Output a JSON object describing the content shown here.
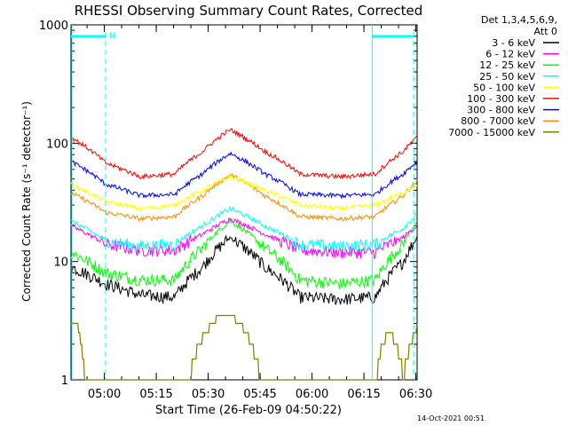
{
  "chart_data": {
    "type": "line",
    "title": "RHESSI Observing Summary Count Rates, Corrected",
    "xlabel": "Start Time (26-Feb-09 04:50:22)",
    "ylabel": "Corrected Count Rate (s⁻¹ detector⁻¹)",
    "yscale": "log",
    "xlim_minutes": [
      0,
      100
    ],
    "ylim": [
      1,
      1000
    ],
    "x_ticks": [
      "05:00",
      "05:15",
      "05:30",
      "05:45",
      "06:00",
      "06:15",
      "06:30"
    ],
    "y_ticks": [
      "1",
      "10",
      "100",
      "1000"
    ],
    "legend_header": [
      "Det 1,3,4,5,6,9,",
      "Att 0"
    ],
    "legend_position": "top-right",
    "footer_date": "14-Oct-2021 00:51",
    "flag_label": "N",
    "series": [
      {
        "name": "3 - 6 keV",
        "color": "#000000",
        "x_min": [
          0,
          10,
          20,
          30,
          38,
          46,
          56,
          66,
          78,
          88,
          96,
          100
        ],
        "y": [
          9,
          6.5,
          5.2,
          5,
          9,
          16,
          9,
          5,
          4.8,
          5,
          10,
          16
        ]
      },
      {
        "name": "6 - 12 keV",
        "color": "#ff00ff",
        "x_min": [
          0,
          10,
          20,
          30,
          38,
          46,
          56,
          66,
          78,
          88,
          96,
          100
        ],
        "y": [
          20,
          14,
          12.5,
          12.5,
          17,
          23,
          17,
          12.5,
          12,
          12,
          16,
          20
        ]
      },
      {
        "name": "12 - 25 keV",
        "color": "#00ff00",
        "x_min": [
          0,
          10,
          20,
          30,
          38,
          46,
          56,
          66,
          78,
          88,
          96,
          100
        ],
        "y": [
          12,
          8,
          7,
          7,
          13,
          22,
          13,
          7,
          6.5,
          7,
          14,
          22
        ]
      },
      {
        "name": "25 - 50 keV",
        "color": "#00ffff",
        "x_min": [
          0,
          10,
          20,
          30,
          38,
          46,
          56,
          66,
          78,
          88,
          96,
          100
        ],
        "y": [
          22,
          15,
          13.5,
          14,
          20,
          28,
          20,
          14,
          13.5,
          14,
          19,
          25
        ]
      },
      {
        "name": "50 - 100 keV",
        "color": "#ffff00",
        "x_min": [
          0,
          10,
          20,
          30,
          38,
          46,
          56,
          66,
          78,
          88,
          96,
          100
        ],
        "y": [
          45,
          32,
          28,
          30,
          40,
          52,
          40,
          30,
          28,
          30,
          38,
          45
        ]
      },
      {
        "name": "100 - 300 keV",
        "color": "#ff0000",
        "x_min": [
          0,
          10,
          20,
          30,
          38,
          46,
          56,
          66,
          78,
          88,
          96,
          100
        ],
        "y": [
          112,
          68,
          52,
          55,
          85,
          130,
          85,
          55,
          52,
          55,
          85,
          112
        ]
      },
      {
        "name": "300 - 800 keV",
        "color": "#0000ff",
        "x_min": [
          0,
          10,
          20,
          30,
          38,
          46,
          56,
          66,
          78,
          88,
          96,
          100
        ],
        "y": [
          70,
          45,
          36,
          37,
          55,
          82,
          55,
          37,
          36,
          37,
          55,
          70
        ]
      },
      {
        "name": "800 - 7000 keV",
        "color": "#ff8c00",
        "x_min": [
          0,
          10,
          20,
          30,
          38,
          46,
          56,
          66,
          78,
          88,
          96,
          100
        ],
        "y": [
          38,
          26,
          23,
          24,
          36,
          54,
          36,
          24,
          23,
          24,
          36,
          48
        ]
      },
      {
        "name": "7000 - 15000 keV",
        "color": "#808000",
        "x_min": [
          0,
          2,
          4,
          6,
          34,
          37,
          40,
          43,
          46,
          49,
          52,
          55,
          58,
          88,
          90,
          92,
          94,
          96,
          100
        ],
        "y": [
          2.8,
          2.8,
          1,
          1,
          1,
          2,
          2.8,
          3.5,
          3.5,
          3,
          2,
          1,
          1,
          1,
          2,
          2.5,
          2,
          1,
          2.8
        ]
      }
    ],
    "shaded_intervals_min": [
      [
        0,
        10
      ],
      [
        87,
        99
      ]
    ],
    "colors": {
      "axis": "#000000",
      "background": "#ffffff",
      "flag": "#00ffff"
    }
  }
}
